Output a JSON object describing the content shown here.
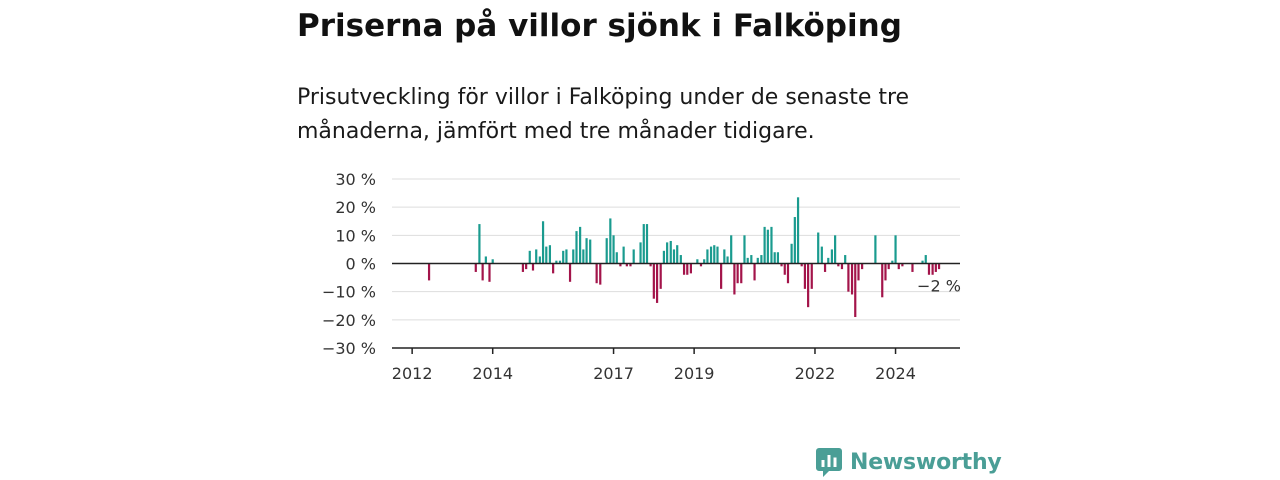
{
  "header": {
    "title": "Priserna på villor sjönk i Falköping",
    "subtitle": "Prisutveckling för villor i Falköping under de senaste tre månaderna, jämfört med tre månader tidigare."
  },
  "brand": {
    "name": "Newsworthy",
    "icon": "newsworthy-logo-icon",
    "color": "#4a9e96"
  },
  "colors": {
    "positive": "#1a9b8f",
    "negative": "#a3144a",
    "grid": "#dddddd",
    "axis": "#222222"
  },
  "chart_data": {
    "type": "bar",
    "ylim": [
      -30,
      30
    ],
    "ytick_values": [
      30,
      20,
      10,
      0,
      -10,
      -20,
      -30
    ],
    "ytick_labels": [
      "30 %",
      "20 %",
      "10 %",
      "0 %",
      "−10 %",
      "−20 %",
      "−30 %"
    ],
    "xlim": [
      2011.5,
      2025.6
    ],
    "xtick_values": [
      2012,
      2014,
      2017,
      2019,
      2022,
      2024
    ],
    "xtick_labels": [
      "2012",
      "2014",
      "2017",
      "2019",
      "2022",
      "2024"
    ],
    "annotation": "−2 %",
    "grid": true,
    "legend": "none",
    "points": [
      [
        2012.42,
        -6
      ],
      [
        2013.58,
        -3
      ],
      [
        2013.67,
        14
      ],
      [
        2013.75,
        -6
      ],
      [
        2013.83,
        2.5
      ],
      [
        2013.92,
        -6.5
      ],
      [
        2014.0,
        1.5
      ],
      [
        2014.75,
        -3
      ],
      [
        2014.83,
        -2
      ],
      [
        2014.92,
        4.5
      ],
      [
        2015.0,
        -2.5
      ],
      [
        2015.08,
        5
      ],
      [
        2015.17,
        2.5
      ],
      [
        2015.25,
        15
      ],
      [
        2015.33,
        6
      ],
      [
        2015.42,
        6.5
      ],
      [
        2015.5,
        -3.5
      ],
      [
        2015.58,
        1
      ],
      [
        2015.67,
        1
      ],
      [
        2015.75,
        4.5
      ],
      [
        2015.83,
        5
      ],
      [
        2015.92,
        -6.5
      ],
      [
        2016.0,
        5
      ],
      [
        2016.08,
        11.5
      ],
      [
        2016.17,
        13
      ],
      [
        2016.25,
        5
      ],
      [
        2016.33,
        9
      ],
      [
        2016.42,
        8.5
      ],
      [
        2016.58,
        -7
      ],
      [
        2016.67,
        -7.5
      ],
      [
        2016.83,
        9
      ],
      [
        2016.92,
        16
      ],
      [
        2017.0,
        10
      ],
      [
        2017.08,
        4
      ],
      [
        2017.17,
        -1
      ],
      [
        2017.25,
        6
      ],
      [
        2017.33,
        -1
      ],
      [
        2017.42,
        -1
      ],
      [
        2017.5,
        5
      ],
      [
        2017.67,
        7.5
      ],
      [
        2017.75,
        14
      ],
      [
        2017.83,
        14
      ],
      [
        2017.92,
        -1
      ],
      [
        2018.0,
        -12.5
      ],
      [
        2018.08,
        -14
      ],
      [
        2018.17,
        -9
      ],
      [
        2018.25,
        4.5
      ],
      [
        2018.33,
        7.5
      ],
      [
        2018.42,
        8
      ],
      [
        2018.5,
        5
      ],
      [
        2018.58,
        6.5
      ],
      [
        2018.67,
        3
      ],
      [
        2018.75,
        -4
      ],
      [
        2018.83,
        -4
      ],
      [
        2018.92,
        -3.5
      ],
      [
        2019.08,
        1.5
      ],
      [
        2019.17,
        -1
      ],
      [
        2019.25,
        1.5
      ],
      [
        2019.33,
        5
      ],
      [
        2019.42,
        6
      ],
      [
        2019.5,
        6.5
      ],
      [
        2019.58,
        6
      ],
      [
        2019.67,
        -9
      ],
      [
        2019.75,
        5
      ],
      [
        2019.83,
        2.5
      ],
      [
        2019.92,
        10
      ],
      [
        2020.0,
        -11
      ],
      [
        2020.08,
        -7
      ],
      [
        2020.17,
        -7
      ],
      [
        2020.25,
        10
      ],
      [
        2020.33,
        2
      ],
      [
        2020.42,
        3
      ],
      [
        2020.5,
        -6
      ],
      [
        2020.58,
        2
      ],
      [
        2020.67,
        3
      ],
      [
        2020.75,
        13
      ],
      [
        2020.83,
        12
      ],
      [
        2020.92,
        13
      ],
      [
        2021.0,
        4
      ],
      [
        2021.08,
        4
      ],
      [
        2021.17,
        -1
      ],
      [
        2021.25,
        -4
      ],
      [
        2021.33,
        -7
      ],
      [
        2021.42,
        7
      ],
      [
        2021.5,
        16.5
      ],
      [
        2021.58,
        23.5
      ],
      [
        2021.67,
        -1
      ],
      [
        2021.75,
        -9
      ],
      [
        2021.83,
        -15.5
      ],
      [
        2021.92,
        -9
      ],
      [
        2022.08,
        11
      ],
      [
        2022.17,
        6
      ],
      [
        2022.25,
        -3
      ],
      [
        2022.33,
        2
      ],
      [
        2022.42,
        5
      ],
      [
        2022.5,
        10
      ],
      [
        2022.58,
        -1
      ],
      [
        2022.67,
        -2
      ],
      [
        2022.75,
        3
      ],
      [
        2022.83,
        -10
      ],
      [
        2022.92,
        -11
      ],
      [
        2023.0,
        -19
      ],
      [
        2023.08,
        -6
      ],
      [
        2023.17,
        -2
      ],
      [
        2023.5,
        10
      ],
      [
        2023.67,
        -12
      ],
      [
        2023.75,
        -6
      ],
      [
        2023.83,
        -2
      ],
      [
        2023.92,
        1
      ],
      [
        2024.0,
        10
      ],
      [
        2024.08,
        -2
      ],
      [
        2024.17,
        -1
      ],
      [
        2024.42,
        -3
      ],
      [
        2024.67,
        1
      ],
      [
        2024.75,
        3
      ],
      [
        2024.83,
        -4
      ],
      [
        2024.92,
        -4
      ],
      [
        2025.0,
        -3
      ],
      [
        2025.08,
        -2
      ]
    ]
  }
}
